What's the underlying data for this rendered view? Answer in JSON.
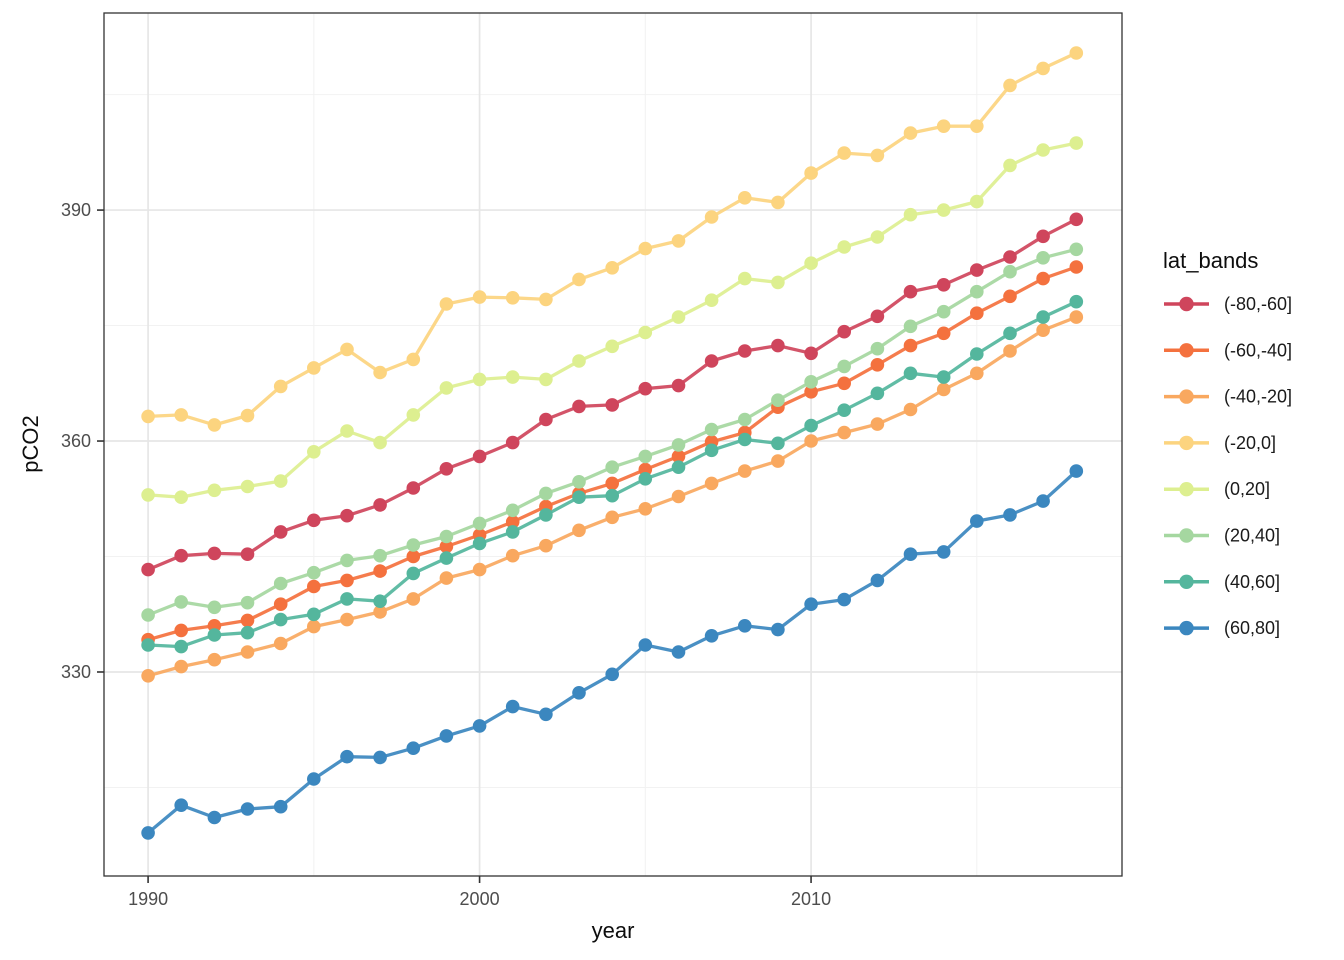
{
  "chart_data": {
    "type": "line",
    "title": "",
    "xlabel": "year",
    "ylabel": "pCO2",
    "grid": true,
    "legend": {
      "title": "lat_bands",
      "position": "right"
    },
    "xlim": [
      1988.67,
      2019.38
    ],
    "ylim": [
      303.5,
      415.6
    ],
    "x_ticks": {
      "major": [
        1990,
        2000,
        2010
      ],
      "labels": [
        "1990",
        "2000",
        "2010"
      ],
      "minor": [
        1995,
        2005,
        2015
      ]
    },
    "y_ticks": {
      "major": [
        330,
        360,
        390
      ],
      "labels": [
        "330",
        "360",
        "390"
      ],
      "minor": [
        315,
        345,
        375,
        405
      ]
    },
    "x": [
      1990,
      1991,
      1992,
      1993,
      1994,
      1995,
      1996,
      1997,
      1998,
      1999,
      2000,
      2001,
      2002,
      2003,
      2004,
      2005,
      2006,
      2007,
      2008,
      2009,
      2010,
      2011,
      2012,
      2013,
      2014,
      2015,
      2016,
      2017,
      2018
    ],
    "series": [
      {
        "name": "(-80,-60]",
        "color": "#cf455c",
        "values": [
          343.3,
          345.1,
          345.4,
          345.3,
          348.2,
          349.7,
          350.3,
          351.7,
          353.9,
          356.4,
          358.0,
          359.8,
          362.8,
          364.5,
          364.7,
          366.8,
          367.2,
          370.4,
          371.7,
          372.4,
          371.4,
          374.2,
          376.2,
          379.4,
          380.3,
          382.2,
          383.9,
          386.6,
          388.8
        ]
      },
      {
        "name": "(-60,-40]",
        "color": "#f4713e",
        "values": [
          334.2,
          335.4,
          336.0,
          336.7,
          338.8,
          341.1,
          341.9,
          343.1,
          345.0,
          346.3,
          347.8,
          349.5,
          351.5,
          353.2,
          354.5,
          356.3,
          358.0,
          359.9,
          361.1,
          364.4,
          366.4,
          367.5,
          369.9,
          372.4,
          374.0,
          376.6,
          378.8,
          381.1,
          382.6
        ]
      },
      {
        "name": "(-40,-20]",
        "color": "#f9a85f",
        "values": [
          329.5,
          330.7,
          331.6,
          332.6,
          333.7,
          335.9,
          336.8,
          337.8,
          339.5,
          342.2,
          343.3,
          345.1,
          346.4,
          348.4,
          350.1,
          351.2,
          352.8,
          354.5,
          356.1,
          357.4,
          360.0,
          361.1,
          362.2,
          364.1,
          366.7,
          368.8,
          371.7,
          374.4,
          376.1
        ]
      },
      {
        "name": "(-20,0]",
        "color": "#fcd47f",
        "values": [
          363.2,
          363.4,
          362.1,
          363.3,
          367.1,
          369.5,
          371.9,
          368.9,
          370.6,
          377.8,
          378.7,
          378.6,
          378.4,
          381.0,
          382.5,
          385.0,
          386.0,
          389.1,
          391.6,
          391.0,
          394.8,
          397.4,
          397.1,
          400.0,
          400.9,
          400.9,
          406.2,
          408.4,
          410.4
        ]
      },
      {
        "name": "(0,20]",
        "color": "#ddef90",
        "values": [
          353.0,
          352.7,
          353.6,
          354.1,
          354.8,
          358.6,
          361.3,
          359.8,
          363.4,
          366.9,
          368.0,
          368.3,
          368.0,
          370.4,
          372.3,
          374.1,
          376.1,
          378.3,
          381.1,
          380.6,
          383.1,
          385.2,
          386.5,
          389.4,
          390.0,
          391.1,
          395.8,
          397.8,
          398.7
        ]
      },
      {
        "name": "(20,40]",
        "color": "#a5d7a0",
        "values": [
          337.4,
          339.1,
          338.4,
          339.0,
          341.5,
          342.9,
          344.5,
          345.1,
          346.5,
          347.6,
          349.3,
          351.0,
          353.2,
          354.7,
          356.6,
          358.0,
          359.5,
          361.5,
          362.8,
          365.3,
          367.7,
          369.7,
          372.0,
          374.9,
          376.8,
          379.4,
          382.0,
          383.8,
          384.9
        ]
      },
      {
        "name": "(40,60]",
        "color": "#54b69d",
        "values": [
          333.5,
          333.3,
          334.8,
          335.1,
          336.8,
          337.5,
          339.5,
          339.2,
          342.8,
          344.8,
          346.7,
          348.2,
          350.4,
          352.7,
          352.9,
          355.1,
          356.6,
          358.8,
          360.2,
          359.7,
          362.0,
          364.0,
          366.2,
          368.8,
          368.3,
          371.3,
          374.0,
          376.1,
          378.1
        ]
      },
      {
        "name": "(60,80]",
        "color": "#3b87bf",
        "values": [
          309.1,
          312.7,
          311.1,
          312.2,
          312.5,
          316.1,
          319.0,
          318.9,
          320.1,
          321.7,
          323.0,
          325.5,
          324.5,
          327.3,
          329.7,
          333.5,
          332.6,
          334.7,
          336.0,
          335.5,
          338.8,
          339.4,
          341.9,
          345.3,
          345.6,
          349.6,
          350.4,
          352.2,
          356.1
        ]
      }
    ],
    "style": {
      "grid_major_color": "#e6e6e6",
      "grid_minor_color": "#f2f2f2",
      "panel_border_color": "#333333",
      "tick_color": "#333333",
      "tick_label_color": "#4d4d4d",
      "point_radius": 6.8,
      "line_width": 3.3
    }
  }
}
